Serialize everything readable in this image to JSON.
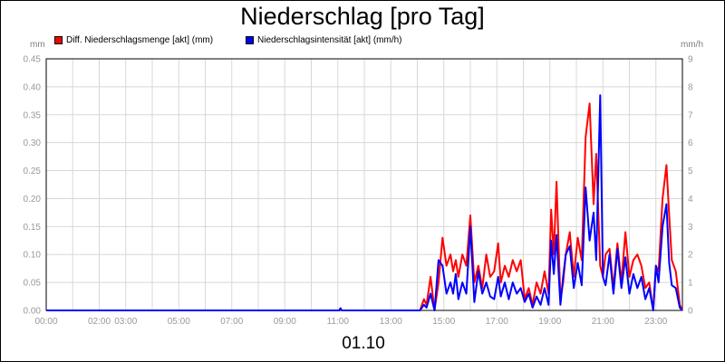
{
  "header": {
    "title": "Niederschlag [pro Tag]",
    "unit_left": "mm",
    "unit_right": "mm/h",
    "date": "01.10"
  },
  "chart_data": {
    "type": "line",
    "title": "Niederschlag [pro Tag]",
    "xlabel": "01.10",
    "x_range_hours": [
      0,
      24
    ],
    "x_tick_labels": [
      "00:00",
      "02:00",
      "03:00",
      "05:00",
      "07:00",
      "09:00",
      "11:00",
      "13:00",
      "15:00",
      "17:00",
      "19:00",
      "21:00",
      "23:00"
    ],
    "y_left": {
      "label": "mm",
      "range": [
        0,
        0.45
      ],
      "ticks": [
        "0.00",
        "0.05",
        "0.10",
        "0.15",
        "0.20",
        "0.25",
        "0.30",
        "0.35",
        "0.40",
        "0.45"
      ]
    },
    "y_right": {
      "label": "mm/h",
      "range": [
        0,
        9
      ],
      "ticks": [
        "0",
        "1",
        "2",
        "3",
        "4",
        "5",
        "6",
        "7",
        "8",
        "9"
      ]
    },
    "grid": true,
    "legend_position": "top-left",
    "series": [
      {
        "name": "Diff. Niederschlagsmenge [akt] (mm)",
        "axis": "left",
        "color": "#ff0000",
        "x": [
          0,
          11.05,
          11.1,
          11.15,
          14.1,
          14.25,
          14.35,
          14.5,
          14.65,
          14.8,
          14.95,
          15.1,
          15.25,
          15.35,
          15.45,
          15.55,
          15.7,
          15.85,
          16.0,
          16.15,
          16.3,
          16.45,
          16.6,
          16.75,
          16.9,
          17.05,
          17.15,
          17.3,
          17.45,
          17.6,
          17.75,
          17.9,
          18.05,
          18.2,
          18.35,
          18.5,
          18.65,
          18.8,
          18.95,
          19.05,
          19.15,
          19.25,
          19.4,
          19.5,
          19.6,
          19.75,
          19.9,
          20.05,
          20.2,
          20.35,
          20.5,
          20.65,
          20.75,
          20.9,
          21.0,
          21.1,
          21.25,
          21.4,
          21.55,
          21.7,
          21.85,
          22.0,
          22.15,
          22.3,
          22.45,
          22.6,
          22.75,
          22.9,
          23.0,
          23.1,
          23.25,
          23.4,
          23.5,
          23.6,
          23.75,
          23.9,
          24.0
        ],
        "values": [
          0,
          0,
          0.003,
          0,
          0,
          0.02,
          0.01,
          0.06,
          0.0,
          0.05,
          0.13,
          0.08,
          0.1,
          0.07,
          0.09,
          0.06,
          0.1,
          0.08,
          0.17,
          0.05,
          0.08,
          0.04,
          0.1,
          0.06,
          0.07,
          0.12,
          0.05,
          0.08,
          0.06,
          0.09,
          0.07,
          0.09,
          0.02,
          0.04,
          0.01,
          0.05,
          0.03,
          0.07,
          0.03,
          0.18,
          0.1,
          0.23,
          0.02,
          0.05,
          0.1,
          0.14,
          0.06,
          0.13,
          0.09,
          0.31,
          0.37,
          0.19,
          0.28,
          0.08,
          0.06,
          0.1,
          0.11,
          0.04,
          0.12,
          0.05,
          0.14,
          0.06,
          0.09,
          0.1,
          0.08,
          0.04,
          0.05,
          0.0,
          0.08,
          0.07,
          0.2,
          0.26,
          0.17,
          0.09,
          0.07,
          0.01,
          0.0
        ]
      },
      {
        "name": "Niederschlagsintensität [akt] (mm/h)",
        "axis": "right",
        "color": "#0000ff",
        "x": [
          0,
          11.05,
          11.1,
          11.15,
          14.1,
          14.25,
          14.35,
          14.5,
          14.65,
          14.8,
          14.95,
          15.1,
          15.25,
          15.35,
          15.45,
          15.55,
          15.7,
          15.85,
          16.0,
          16.15,
          16.3,
          16.45,
          16.6,
          16.75,
          16.9,
          17.05,
          17.15,
          17.3,
          17.45,
          17.6,
          17.75,
          17.9,
          18.05,
          18.2,
          18.35,
          18.5,
          18.65,
          18.8,
          18.95,
          19.05,
          19.15,
          19.25,
          19.4,
          19.5,
          19.6,
          19.75,
          19.9,
          20.05,
          20.2,
          20.35,
          20.5,
          20.65,
          20.75,
          20.9,
          21.0,
          21.1,
          21.25,
          21.4,
          21.55,
          21.7,
          21.85,
          22.0,
          22.15,
          22.3,
          22.45,
          22.6,
          22.75,
          22.9,
          23.0,
          23.1,
          23.25,
          23.4,
          23.5,
          23.6,
          23.75,
          23.9,
          24.0
        ],
        "values": [
          0,
          0,
          0.08,
          0,
          0,
          0.2,
          0.1,
          0.6,
          0.0,
          1.8,
          1.6,
          0.6,
          1.0,
          0.6,
          1.3,
          0.4,
          1.0,
          0.6,
          3.0,
          0.3,
          1.4,
          0.6,
          1.0,
          0.5,
          0.4,
          1.2,
          0.5,
          1.0,
          0.4,
          1.0,
          0.6,
          0.8,
          0.3,
          0.6,
          0.1,
          0.5,
          0.2,
          0.8,
          0.2,
          2.5,
          1.3,
          2.7,
          0.2,
          1.2,
          2.0,
          2.3,
          0.8,
          1.7,
          0.9,
          4.4,
          2.5,
          3.5,
          1.8,
          7.7,
          1.2,
          0.9,
          2.0,
          0.6,
          2.2,
          0.8,
          1.9,
          0.6,
          1.3,
          0.8,
          1.2,
          0.4,
          0.8,
          0.0,
          1.6,
          1.0,
          3.0,
          3.8,
          1.7,
          0.9,
          0.8,
          0.1,
          0.0
        ]
      }
    ]
  }
}
